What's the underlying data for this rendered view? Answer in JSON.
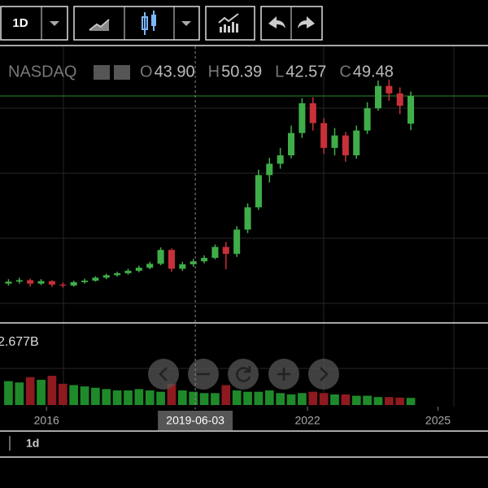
{
  "chart_data": {
    "type": "candlestick",
    "interval": "1D",
    "footer_interval": "1d",
    "symbol": "NASDAQ",
    "x": [
      2015.125,
      2015.375,
      2015.625,
      2015.875,
      2016.125,
      2016.375,
      2016.625,
      2016.875,
      2017.125,
      2017.375,
      2017.625,
      2017.875,
      2018.125,
      2018.375,
      2018.625,
      2018.875,
      2019.125,
      2019.375,
      2019.625,
      2019.875,
      2020.125,
      2020.375,
      2020.625,
      2020.875,
      2021.125,
      2021.375,
      2021.625,
      2021.875,
      2022.125,
      2022.375,
      2022.625,
      2022.875,
      2023.125,
      2023.375,
      2023.625,
      2023.875,
      2024.125,
      2024.375
    ],
    "open": {
      "label": "O",
      "values": [
        11.6,
        12.0,
        12.3,
        11.6,
        12.1,
        11.4,
        11.2,
        11.9,
        12.2,
        12.8,
        13.3,
        13.7,
        14.2,
        14.8,
        15.6,
        18.4,
        14.6,
        15.5,
        16.1,
        16.8,
        19.0,
        17.6,
        22.5,
        27.0,
        33.5,
        35.8,
        37.5,
        42.0,
        48.0,
        44.0,
        39.0,
        41.5,
        37.5,
        42.5,
        47.0,
        51.5,
        50.0,
        43.9
      ],
      "value_labels": [
        null,
        null,
        null,
        null,
        null,
        null,
        null,
        null,
        null,
        null,
        null,
        null,
        null,
        null,
        null,
        null,
        null,
        null,
        null,
        null,
        null,
        null,
        null,
        null,
        null,
        null,
        null,
        null,
        null,
        null,
        null,
        null,
        null,
        null,
        null,
        null,
        null,
        "43.90"
      ]
    },
    "high": {
      "label": "H",
      "values": [
        12.5,
        12.8,
        12.6,
        12.5,
        12.3,
        11.8,
        12.2,
        12.6,
        13.1,
        13.6,
        14.0,
        14.6,
        15.2,
        16.0,
        18.9,
        18.7,
        16.0,
        16.6,
        17.3,
        19.5,
        20.0,
        23.2,
        27.8,
        34.6,
        37.0,
        39.0,
        43.5,
        49.0,
        49.2,
        45.0,
        43.0,
        42.2,
        43.5,
        48.2,
        52.6,
        52.8,
        51.2,
        50.39
      ],
      "value_labels": [
        null,
        null,
        null,
        null,
        null,
        null,
        null,
        null,
        null,
        null,
        null,
        null,
        null,
        null,
        null,
        null,
        null,
        null,
        null,
        null,
        null,
        null,
        null,
        null,
        null,
        null,
        null,
        null,
        null,
        null,
        null,
        null,
        null,
        null,
        null,
        null,
        null,
        "50.39"
      ]
    },
    "low": {
      "label": "L",
      "values": [
        11.2,
        11.6,
        11.0,
        11.3,
        10.9,
        10.8,
        11.0,
        11.6,
        12.0,
        12.5,
        13.0,
        13.4,
        13.9,
        14.5,
        15.3,
        14.0,
        14.2,
        15.0,
        15.7,
        16.5,
        14.5,
        17.0,
        21.8,
        26.5,
        32.0,
        34.8,
        36.9,
        41.0,
        42.5,
        37.8,
        37.5,
        36.2,
        36.8,
        41.8,
        46.5,
        48.5,
        45.8,
        42.57
      ],
      "value_labels": [
        null,
        null,
        null,
        null,
        null,
        null,
        null,
        null,
        null,
        null,
        null,
        null,
        null,
        null,
        null,
        null,
        null,
        null,
        null,
        null,
        null,
        null,
        null,
        null,
        null,
        null,
        null,
        null,
        null,
        null,
        null,
        null,
        null,
        null,
        null,
        null,
        null,
        "42.57"
      ]
    },
    "close": {
      "label": "C",
      "values": [
        12.0,
        12.3,
        11.6,
        12.1,
        11.4,
        11.2,
        11.9,
        12.2,
        12.8,
        13.3,
        13.7,
        14.2,
        14.8,
        15.6,
        18.4,
        14.6,
        15.5,
        16.1,
        16.8,
        19.0,
        17.6,
        22.5,
        27.0,
        33.5,
        35.8,
        37.5,
        42.0,
        48.0,
        44.0,
        39.0,
        41.5,
        37.5,
        42.5,
        47.0,
        51.5,
        50.0,
        47.5,
        49.48
      ],
      "value_labels": [
        null,
        null,
        null,
        null,
        null,
        null,
        null,
        null,
        null,
        null,
        null,
        null,
        null,
        null,
        null,
        null,
        null,
        null,
        null,
        null,
        null,
        null,
        null,
        null,
        null,
        null,
        null,
        null,
        null,
        null,
        null,
        null,
        null,
        null,
        null,
        null,
        null,
        "49.48"
      ]
    },
    "volume": {
      "values": [
        9.0,
        8.5,
        10.5,
        9.5,
        11.0,
        8.0,
        7.5,
        7.0,
        6.5,
        6.0,
        5.5,
        5.5,
        6.0,
        5.5,
        5.0,
        8.0,
        5.5,
        5.0,
        4.5,
        4.5,
        7.5,
        5.5,
        5.0,
        5.0,
        5.5,
        4.5,
        4.0,
        4.5,
        5.0,
        4.5,
        4.0,
        4.0,
        3.5,
        3.5,
        3.0,
        3.0,
        2.8,
        2.677
      ],
      "value_labels": [
        null,
        null,
        null,
        null,
        null,
        null,
        null,
        null,
        null,
        null,
        null,
        null,
        null,
        null,
        null,
        null,
        null,
        null,
        null,
        null,
        null,
        null,
        null,
        null,
        null,
        null,
        null,
        null,
        null,
        null,
        null,
        null,
        null,
        null,
        null,
        null,
        null,
        "2.677B"
      ]
    },
    "xlim": [
      2014.93,
      2026.15
    ],
    "xticks": [
      2016,
      2022,
      2025
    ],
    "ylim": [
      4,
      59
    ],
    "volume_ylim": [
      0,
      30
    ],
    "crosshair": {
      "x": 2019.42,
      "label": "2019-06-03"
    },
    "up_color": "#3fae49",
    "down_color": "#c8303a",
    "volume_up_color": "#1f8a2a",
    "volume_down_color": "#8e1a1f",
    "price_line_color": "#2a8a2a"
  }
}
